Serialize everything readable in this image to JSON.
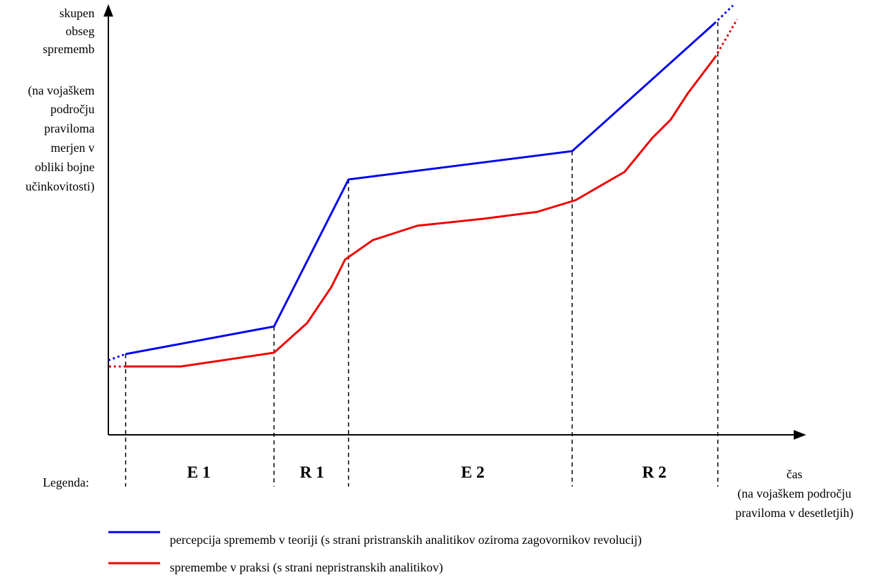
{
  "ylabel_lines": [
    "skupen",
    "obseg",
    "sprememb",
    "",
    "(na vojaškem",
    "področju",
    "praviloma",
    "merjen v",
    "obliki bojne",
    "učinkovitosti)"
  ],
  "xlabel_lines": [
    "čas",
    "(na vojaškem področju",
    "praviloma v desetletjih)"
  ],
  "legend_title": "Legenda:",
  "phases": [
    {
      "label": "E 1"
    },
    {
      "label": "R 1"
    },
    {
      "label": "E 2"
    },
    {
      "label": "R 2"
    }
  ],
  "colors": {
    "blue": "#0000ee",
    "red": "#ee0000",
    "axis": "#000000"
  },
  "legend": {
    "blue": "percepcija sprememb v teoriji (s strani pristranskih analitikov oziroma zagovornikov revolucij)",
    "red": "spremembe v praksi (s strani nepristranskih analitikov)"
  },
  "icons": [
    "y-axis-arrow-icon",
    "x-axis-arrow-icon"
  ]
}
